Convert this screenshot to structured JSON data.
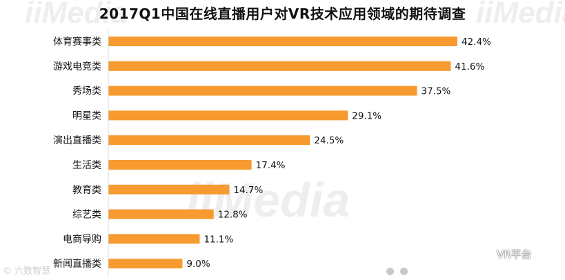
{
  "watermark": {
    "top_left": "iiMedia",
    "top_right": "iiMedia",
    "bottom": "iiMedia"
  },
  "footer": {
    "left_text": "© 六数智慧"
  },
  "brand": {
    "icon": "wechat-icon",
    "label": "VR平台"
  },
  "pagination": {
    "count": 2
  },
  "colors": {
    "bar": "#f79a30",
    "text": "#111111"
  },
  "chart_data": {
    "type": "bar",
    "orientation": "horizontal",
    "title": "2017Q1中国在线直播用户对VR技术应用领域的期待调查",
    "categories": [
      "体育赛事类",
      "游戏电竞类",
      "秀场类",
      "明星类",
      "演出直播类",
      "生活类",
      "教育类",
      "综艺类",
      "电商导购",
      "新闻直播类"
    ],
    "values": [
      42.4,
      41.6,
      37.5,
      29.1,
      24.5,
      17.4,
      14.7,
      12.8,
      11.1,
      9.0
    ],
    "value_labels": [
      "42.4%",
      "41.6%",
      "37.5%",
      "29.1%",
      "24.5%",
      "17.4%",
      "14.7%",
      "12.8%",
      "11.1%",
      "9.0%"
    ],
    "xlim": [
      0,
      45
    ],
    "unit": "%",
    "grid": false,
    "legend": "none"
  }
}
